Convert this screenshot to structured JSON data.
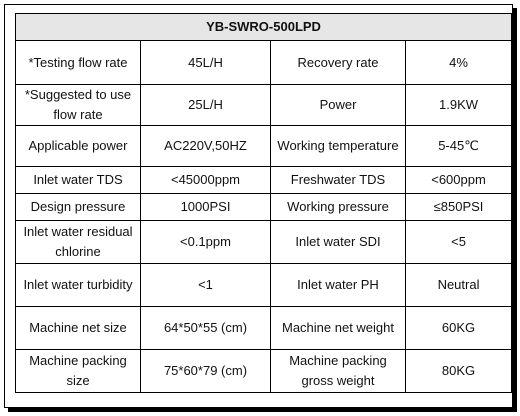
{
  "table": {
    "title": "YB-SWRO-500LPD",
    "rows": [
      [
        "*Testing flow rate",
        "45L/H",
        "Recovery rate",
        "4%"
      ],
      [
        "*Suggested to use flow rate",
        "25L/H",
        "Power",
        "1.9KW"
      ],
      [
        "Applicable power",
        "AC220V,50HZ",
        "Working temperature",
        "5-45℃"
      ],
      [
        "Inlet water TDS",
        "<45000ppm",
        "Freshwater TDS",
        "<600ppm"
      ],
      [
        "Design pressure",
        "1000PSI",
        "Working pressure",
        "≤850PSI"
      ],
      [
        "Inlet water residual chlorine",
        "<0.1ppm",
        "Inlet water SDI",
        "<5"
      ],
      [
        "Inlet water turbidity",
        "<1",
        "Inlet water PH",
        "Neutral"
      ],
      [
        "Machine net size",
        "64*50*55 (cm)",
        "Machine net weight",
        "60KG"
      ],
      [
        "Machine packing size",
        "75*60*79 (cm)",
        "Machine packing gross weight",
        "80KG"
      ]
    ]
  }
}
